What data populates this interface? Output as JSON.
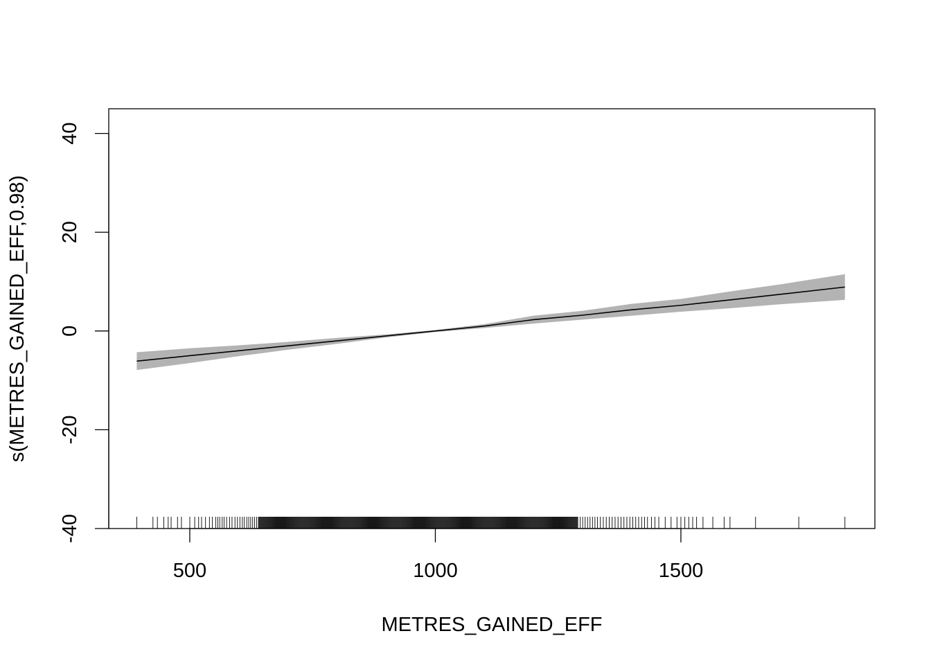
{
  "chart_data": {
    "type": "line",
    "title": "",
    "xlabel": "METRES_GAINED_EFF",
    "ylabel": "s(METRES_GAINED_EFF,0.98)",
    "xlim": [
      335,
      1895
    ],
    "ylim": [
      -40,
      45
    ],
    "x_ticks": [
      500,
      1000,
      1500
    ],
    "y_ticks": [
      -40,
      -20,
      0,
      20,
      40
    ],
    "x_tick_labels": [
      "500",
      "1000",
      "1500"
    ],
    "y_tick_labels": [
      "-40",
      "-20",
      "0",
      "20",
      "40"
    ],
    "grid": false,
    "legend": "none",
    "series": [
      {
        "x": [
          392,
          500,
          600,
          700,
          800,
          900,
          1000,
          1100,
          1200,
          1300,
          1400,
          1500,
          1600,
          1700,
          1834
        ],
        "values": [
          -6.1,
          -5.0,
          -4.0,
          -3.0,
          -2.0,
          -1.0,
          0.0,
          1.0,
          2.3,
          3.2,
          4.3,
          5.2,
          6.3,
          7.4,
          8.9
        ]
      }
    ],
    "band": {
      "x": [
        392,
        500,
        600,
        700,
        800,
        900,
        1000,
        1100,
        1200,
        1300,
        1400,
        1500,
        1600,
        1700,
        1834
      ],
      "lower": [
        -7.9,
        -6.5,
        -5.1,
        -3.8,
        -2.6,
        -1.3,
        -0.2,
        0.6,
        1.5,
        2.3,
        3.1,
        3.9,
        4.6,
        5.4,
        6.3
      ],
      "upper": [
        -4.3,
        -3.5,
        -2.9,
        -2.2,
        -1.4,
        -0.7,
        0.2,
        1.4,
        3.1,
        4.1,
        5.5,
        6.5,
        8.0,
        9.4,
        11.5
      ]
    },
    "rug": {
      "sparse": [
        392,
        425,
        434,
        447,
        456,
        462,
        475,
        483,
        500,
        510,
        518,
        524,
        532,
        540,
        546,
        553,
        557,
        561,
        566,
        570,
        575,
        581,
        586,
        592,
        597,
        602,
        607,
        611,
        616,
        620,
        624,
        628,
        632,
        636,
        640,
        1290,
        1295,
        1300,
        1305,
        1310,
        1315,
        1320,
        1325,
        1330,
        1336,
        1342,
        1348,
        1354,
        1360,
        1366,
        1372,
        1378,
        1384,
        1390,
        1396,
        1402,
        1408,
        1414,
        1420,
        1426,
        1432,
        1440,
        1447,
        1455,
        1468,
        1480,
        1492,
        1500,
        1508,
        1516,
        1524,
        1532,
        1545,
        1565,
        1588,
        1600,
        1652,
        1740,
        1834
      ],
      "dense_from": 640,
      "dense_to": 1290
    }
  }
}
